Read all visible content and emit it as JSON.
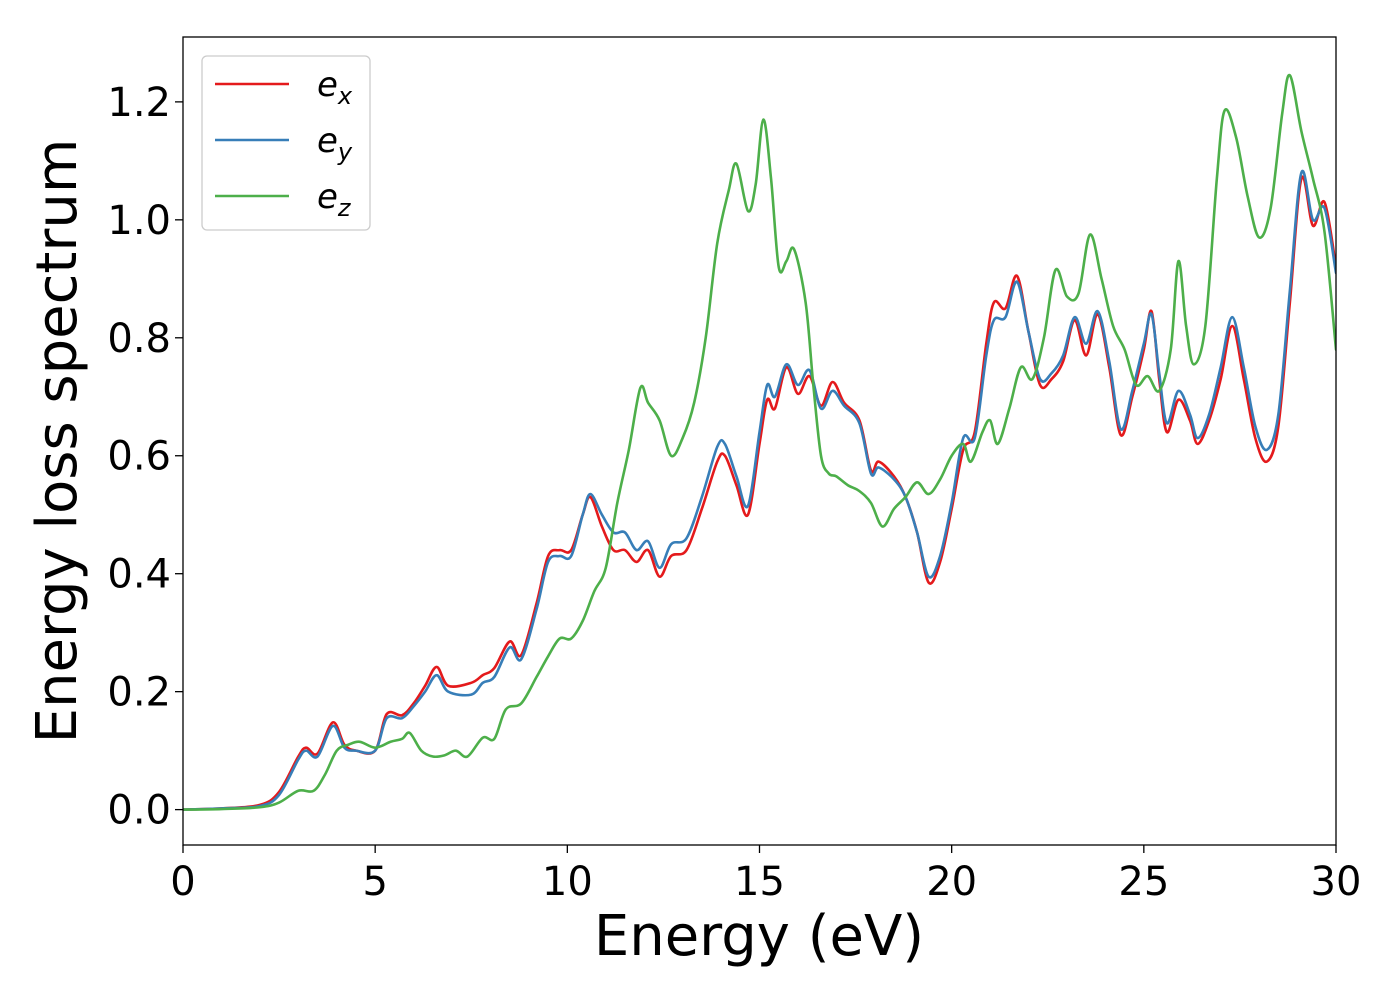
{
  "chart_data": {
    "type": "line",
    "title": "",
    "xlabel": "Energy (eV)",
    "ylabel": "Energy loss spectrum",
    "xlim": [
      0,
      30
    ],
    "ylim": [
      -0.06,
      1.31
    ],
    "xticks": [
      0,
      5,
      10,
      15,
      20,
      25,
      30
    ],
    "yticks": [
      0.0,
      0.2,
      0.4,
      0.6,
      0.8,
      1.0,
      1.2
    ],
    "xtick_labels": [
      "0",
      "5",
      "10",
      "15",
      "20",
      "25",
      "30"
    ],
    "ytick_labels": [
      "0.0",
      "0.2",
      "0.4",
      "0.6",
      "0.8",
      "1.0",
      "1.2"
    ],
    "grid": false,
    "legend_position": "top-left",
    "series": [
      {
        "name": "e_x",
        "legend_main": "e",
        "legend_sub": "x",
        "color": "#e41a1c",
        "points": [
          [
            0,
            0
          ],
          [
            1,
            0.002
          ],
          [
            2,
            0.008
          ],
          [
            2.5,
            0.03
          ],
          [
            3,
            0.09
          ],
          [
            3.2,
            0.105
          ],
          [
            3.5,
            0.095
          ],
          [
            3.9,
            0.148
          ],
          [
            4.2,
            0.11
          ],
          [
            4.5,
            0.1
          ],
          [
            5,
            0.1
          ],
          [
            5.3,
            0.162
          ],
          [
            5.7,
            0.16
          ],
          [
            6,
            0.18
          ],
          [
            6.3,
            0.21
          ],
          [
            6.6,
            0.242
          ],
          [
            6.9,
            0.21
          ],
          [
            7.5,
            0.215
          ],
          [
            7.8,
            0.228
          ],
          [
            8.1,
            0.24
          ],
          [
            8.5,
            0.285
          ],
          [
            8.8,
            0.262
          ],
          [
            9.2,
            0.35
          ],
          [
            9.5,
            0.43
          ],
          [
            9.8,
            0.44
          ],
          [
            10.1,
            0.44
          ],
          [
            10.4,
            0.5
          ],
          [
            10.6,
            0.53
          ],
          [
            10.9,
            0.48
          ],
          [
            11.2,
            0.44
          ],
          [
            11.5,
            0.44
          ],
          [
            11.8,
            0.42
          ],
          [
            12.1,
            0.44
          ],
          [
            12.4,
            0.395
          ],
          [
            12.7,
            0.43
          ],
          [
            13.1,
            0.44
          ],
          [
            13.5,
            0.51
          ],
          [
            13.9,
            0.59
          ],
          [
            14.1,
            0.6
          ],
          [
            14.4,
            0.55
          ],
          [
            14.7,
            0.5
          ],
          [
            15,
            0.62
          ],
          [
            15.2,
            0.695
          ],
          [
            15.4,
            0.68
          ],
          [
            15.7,
            0.75
          ],
          [
            16,
            0.705
          ],
          [
            16.3,
            0.735
          ],
          [
            16.6,
            0.685
          ],
          [
            16.9,
            0.725
          ],
          [
            17.2,
            0.69
          ],
          [
            17.6,
            0.66
          ],
          [
            17.9,
            0.575
          ],
          [
            18.1,
            0.59
          ],
          [
            18.5,
            0.565
          ],
          [
            18.8,
            0.53
          ],
          [
            19.1,
            0.47
          ],
          [
            19.4,
            0.385
          ],
          [
            19.7,
            0.42
          ],
          [
            20,
            0.51
          ],
          [
            20.3,
            0.61
          ],
          [
            20.6,
            0.64
          ],
          [
            20.9,
            0.79
          ],
          [
            21.1,
            0.86
          ],
          [
            21.4,
            0.85
          ],
          [
            21.7,
            0.905
          ],
          [
            22,
            0.81
          ],
          [
            22.3,
            0.72
          ],
          [
            22.6,
            0.73
          ],
          [
            22.9,
            0.76
          ],
          [
            23.2,
            0.83
          ],
          [
            23.5,
            0.77
          ],
          [
            23.8,
            0.84
          ],
          [
            24.1,
            0.75
          ],
          [
            24.4,
            0.635
          ],
          [
            24.7,
            0.7
          ],
          [
            25,
            0.78
          ],
          [
            25.2,
            0.845
          ],
          [
            25.4,
            0.73
          ],
          [
            25.6,
            0.64
          ],
          [
            25.9,
            0.695
          ],
          [
            26.2,
            0.66
          ],
          [
            26.4,
            0.62
          ],
          [
            26.7,
            0.66
          ],
          [
            27,
            0.73
          ],
          [
            27.3,
            0.82
          ],
          [
            27.6,
            0.73
          ],
          [
            27.9,
            0.63
          ],
          [
            28.2,
            0.59
          ],
          [
            28.5,
            0.65
          ],
          [
            28.8,
            0.86
          ],
          [
            29.1,
            1.07
          ],
          [
            29.4,
            0.99
          ],
          [
            29.7,
            1.03
          ],
          [
            30,
            0.92
          ]
        ]
      },
      {
        "name": "e_y",
        "legend_main": "e",
        "legend_sub": "y",
        "color": "#377eb8",
        "points": [
          [
            0,
            0
          ],
          [
            1,
            0.002
          ],
          [
            2,
            0.006
          ],
          [
            2.5,
            0.025
          ],
          [
            3,
            0.085
          ],
          [
            3.2,
            0.1
          ],
          [
            3.5,
            0.09
          ],
          [
            3.9,
            0.142
          ],
          [
            4.2,
            0.105
          ],
          [
            4.5,
            0.1
          ],
          [
            5,
            0.1
          ],
          [
            5.3,
            0.155
          ],
          [
            5.7,
            0.155
          ],
          [
            6,
            0.175
          ],
          [
            6.3,
            0.2
          ],
          [
            6.6,
            0.228
          ],
          [
            6.9,
            0.2
          ],
          [
            7.5,
            0.195
          ],
          [
            7.8,
            0.215
          ],
          [
            8.1,
            0.225
          ],
          [
            8.5,
            0.275
          ],
          [
            8.8,
            0.255
          ],
          [
            9.2,
            0.34
          ],
          [
            9.5,
            0.42
          ],
          [
            9.8,
            0.43
          ],
          [
            10.1,
            0.43
          ],
          [
            10.4,
            0.5
          ],
          [
            10.6,
            0.535
          ],
          [
            10.9,
            0.5
          ],
          [
            11.2,
            0.47
          ],
          [
            11.5,
            0.47
          ],
          [
            11.8,
            0.44
          ],
          [
            12.1,
            0.455
          ],
          [
            12.4,
            0.41
          ],
          [
            12.7,
            0.45
          ],
          [
            13.1,
            0.46
          ],
          [
            13.5,
            0.53
          ],
          [
            13.9,
            0.615
          ],
          [
            14.1,
            0.62
          ],
          [
            14.4,
            0.565
          ],
          [
            14.7,
            0.515
          ],
          [
            15,
            0.64
          ],
          [
            15.2,
            0.72
          ],
          [
            15.4,
            0.7
          ],
          [
            15.7,
            0.755
          ],
          [
            16,
            0.72
          ],
          [
            16.3,
            0.745
          ],
          [
            16.6,
            0.68
          ],
          [
            16.9,
            0.71
          ],
          [
            17.2,
            0.685
          ],
          [
            17.6,
            0.655
          ],
          [
            17.9,
            0.57
          ],
          [
            18.1,
            0.58
          ],
          [
            18.5,
            0.56
          ],
          [
            18.8,
            0.53
          ],
          [
            19.1,
            0.47
          ],
          [
            19.4,
            0.395
          ],
          [
            19.7,
            0.43
          ],
          [
            20,
            0.52
          ],
          [
            20.3,
            0.63
          ],
          [
            20.6,
            0.63
          ],
          [
            20.9,
            0.77
          ],
          [
            21.1,
            0.83
          ],
          [
            21.4,
            0.835
          ],
          [
            21.7,
            0.895
          ],
          [
            22,
            0.81
          ],
          [
            22.3,
            0.73
          ],
          [
            22.6,
            0.74
          ],
          [
            22.9,
            0.77
          ],
          [
            23.2,
            0.835
          ],
          [
            23.5,
            0.79
          ],
          [
            23.8,
            0.845
          ],
          [
            24.1,
            0.76
          ],
          [
            24.4,
            0.645
          ],
          [
            24.7,
            0.71
          ],
          [
            25,
            0.79
          ],
          [
            25.2,
            0.84
          ],
          [
            25.4,
            0.74
          ],
          [
            25.6,
            0.655
          ],
          [
            25.9,
            0.71
          ],
          [
            26.2,
            0.67
          ],
          [
            26.4,
            0.63
          ],
          [
            26.7,
            0.67
          ],
          [
            27,
            0.75
          ],
          [
            27.3,
            0.835
          ],
          [
            27.6,
            0.75
          ],
          [
            27.9,
            0.65
          ],
          [
            28.2,
            0.61
          ],
          [
            28.5,
            0.67
          ],
          [
            28.8,
            0.88
          ],
          [
            29.1,
            1.08
          ],
          [
            29.4,
            1.0
          ],
          [
            29.7,
            1.02
          ],
          [
            30,
            0.91
          ]
        ]
      },
      {
        "name": "e_z",
        "legend_main": "e",
        "legend_sub": "z",
        "color": "#4daf4a",
        "points": [
          [
            0,
            0
          ],
          [
            1,
            0.001
          ],
          [
            2,
            0.004
          ],
          [
            2.5,
            0.012
          ],
          [
            3,
            0.032
          ],
          [
            3.4,
            0.032
          ],
          [
            3.7,
            0.06
          ],
          [
            4,
            0.1
          ],
          [
            4.3,
            0.11
          ],
          [
            4.6,
            0.115
          ],
          [
            5,
            0.105
          ],
          [
            5.4,
            0.115
          ],
          [
            5.7,
            0.12
          ],
          [
            5.9,
            0.13
          ],
          [
            6.2,
            0.1
          ],
          [
            6.5,
            0.09
          ],
          [
            6.8,
            0.092
          ],
          [
            7.1,
            0.1
          ],
          [
            7.4,
            0.09
          ],
          [
            7.8,
            0.122
          ],
          [
            8.1,
            0.12
          ],
          [
            8.4,
            0.17
          ],
          [
            8.8,
            0.18
          ],
          [
            9.2,
            0.225
          ],
          [
            9.5,
            0.26
          ],
          [
            9.8,
            0.29
          ],
          [
            10.1,
            0.29
          ],
          [
            10.4,
            0.32
          ],
          [
            10.7,
            0.37
          ],
          [
            11,
            0.41
          ],
          [
            11.3,
            0.52
          ],
          [
            11.6,
            0.61
          ],
          [
            11.9,
            0.715
          ],
          [
            12.1,
            0.69
          ],
          [
            12.4,
            0.66
          ],
          [
            12.7,
            0.6
          ],
          [
            13,
            0.63
          ],
          [
            13.3,
            0.69
          ],
          [
            13.6,
            0.8
          ],
          [
            13.9,
            0.96
          ],
          [
            14.2,
            1.05
          ],
          [
            14.4,
            1.095
          ],
          [
            14.7,
            1.015
          ],
          [
            14.9,
            1.06
          ],
          [
            15.1,
            1.17
          ],
          [
            15.3,
            1.07
          ],
          [
            15.5,
            0.92
          ],
          [
            15.7,
            0.93
          ],
          [
            15.9,
            0.95
          ],
          [
            16.2,
            0.86
          ],
          [
            16.4,
            0.72
          ],
          [
            16.6,
            0.6
          ],
          [
            16.8,
            0.57
          ],
          [
            17,
            0.565
          ],
          [
            17.3,
            0.55
          ],
          [
            17.6,
            0.54
          ],
          [
            17.9,
            0.52
          ],
          [
            18.2,
            0.48
          ],
          [
            18.5,
            0.51
          ],
          [
            18.8,
            0.53
          ],
          [
            19.1,
            0.555
          ],
          [
            19.4,
            0.535
          ],
          [
            19.7,
            0.56
          ],
          [
            20,
            0.6
          ],
          [
            20.3,
            0.62
          ],
          [
            20.5,
            0.59
          ],
          [
            20.8,
            0.64
          ],
          [
            21,
            0.66
          ],
          [
            21.2,
            0.62
          ],
          [
            21.5,
            0.68
          ],
          [
            21.8,
            0.75
          ],
          [
            22.1,
            0.73
          ],
          [
            22.4,
            0.8
          ],
          [
            22.7,
            0.915
          ],
          [
            23,
            0.87
          ],
          [
            23.3,
            0.875
          ],
          [
            23.6,
            0.975
          ],
          [
            23.9,
            0.9
          ],
          [
            24.2,
            0.82
          ],
          [
            24.5,
            0.78
          ],
          [
            24.8,
            0.72
          ],
          [
            25.1,
            0.735
          ],
          [
            25.4,
            0.71
          ],
          [
            25.7,
            0.78
          ],
          [
            25.9,
            0.93
          ],
          [
            26.1,
            0.82
          ],
          [
            26.3,
            0.755
          ],
          [
            26.6,
            0.82
          ],
          [
            26.9,
            1.07
          ],
          [
            27.1,
            1.185
          ],
          [
            27.4,
            1.14
          ],
          [
            27.7,
            1.04
          ],
          [
            28,
            0.97
          ],
          [
            28.3,
            1.02
          ],
          [
            28.6,
            1.18
          ],
          [
            28.8,
            1.245
          ],
          [
            29.1,
            1.15
          ],
          [
            29.4,
            1.07
          ],
          [
            29.7,
            0.98
          ],
          [
            30,
            0.78
          ]
        ]
      }
    ]
  }
}
